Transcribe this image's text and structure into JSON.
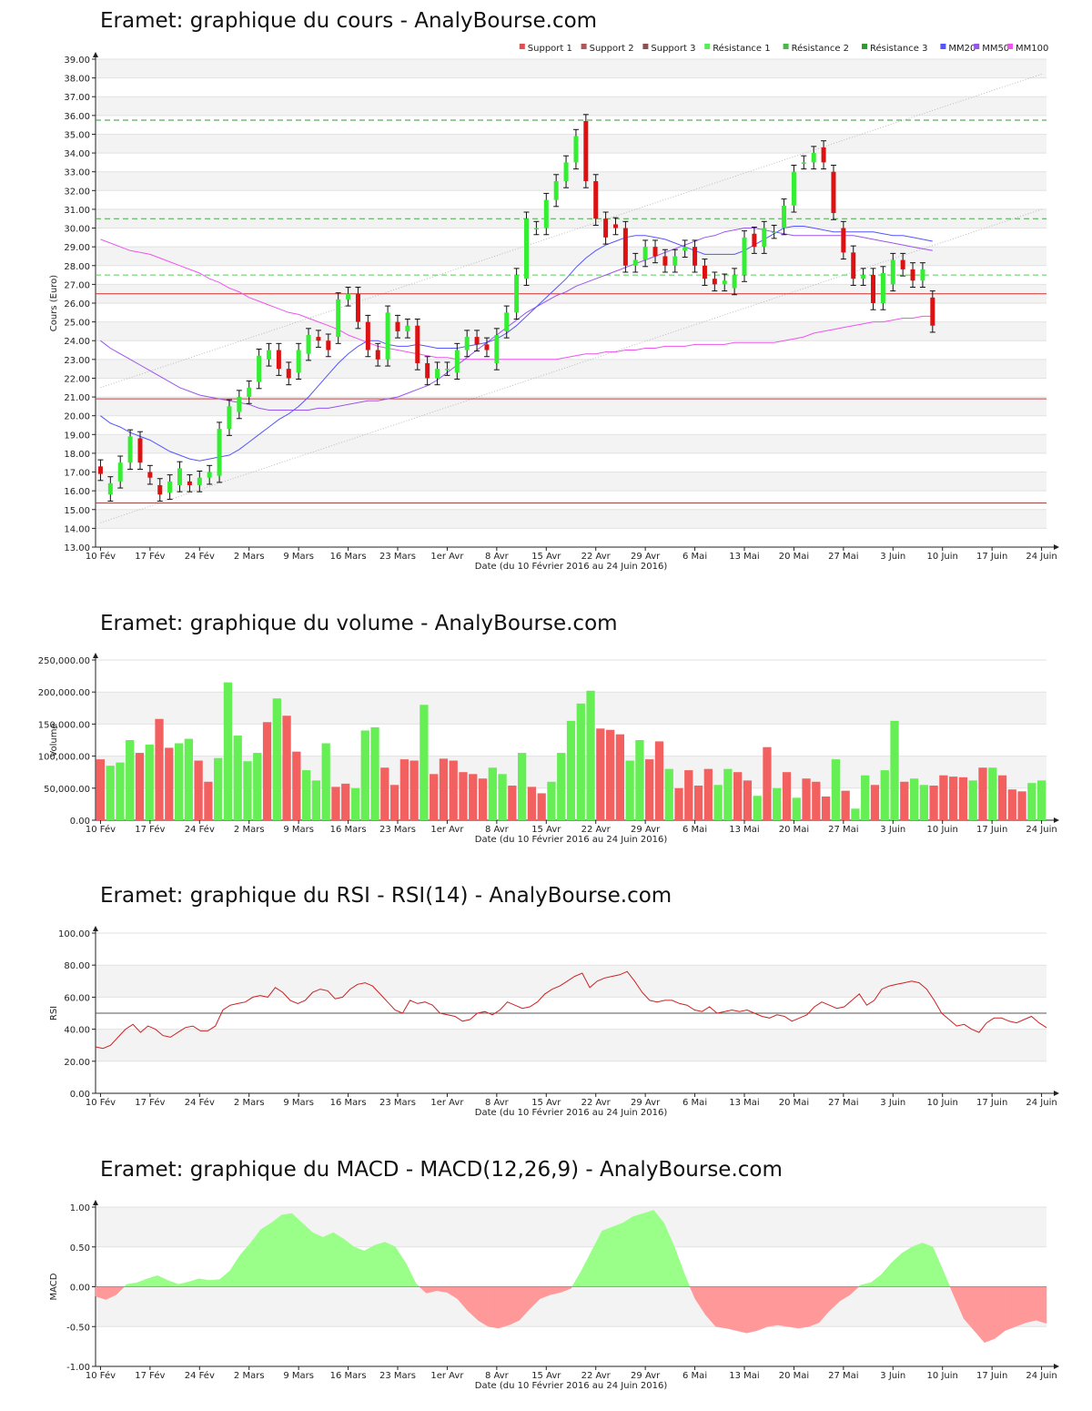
{
  "chart_data": [
    {
      "type": "candlestick",
      "title": "Eramet: graphique du cours - AnalyBourse.com",
      "xlabel": "Date (du 10 Février 2016 au 24 Juin 2016)",
      "ylabel": "Cours (Euro)",
      "ylim": [
        13,
        39
      ],
      "yticks": [
        "13.00",
        "14.00",
        "15.00",
        "16.00",
        "17.00",
        "18.00",
        "19.00",
        "20.00",
        "21.00",
        "22.00",
        "23.00",
        "24.00",
        "25.00",
        "26.00",
        "27.00",
        "28.00",
        "29.00",
        "30.00",
        "31.00",
        "32.00",
        "33.00",
        "34.00",
        "35.00",
        "36.00",
        "37.00",
        "38.00",
        "39.00"
      ],
      "x_tick_labels": [
        "10 Fév",
        "17 Fév",
        "24 Fév",
        "2 Mars",
        "9 Mars",
        "16 Mars",
        "23 Mars",
        "1er Avr",
        "8 Avr",
        "15 Avr",
        "22 Avr",
        "29 Avr",
        "6 Mai",
        "13 Mai",
        "20 Mai",
        "27 Mai",
        "3 Juin",
        "10 Juin",
        "17 Juin",
        "24 Juin"
      ],
      "x_tick_index": [
        0,
        5,
        10,
        15,
        20,
        25,
        30,
        35,
        40,
        45,
        50,
        55,
        60,
        65,
        70,
        75,
        80,
        85,
        90,
        95
      ],
      "legend": [
        "Support 1",
        "Support 2",
        "Support 3",
        "Résistance 1",
        "Résistance 2",
        "Résistance 3",
        "MM20",
        "MM50",
        "MM100"
      ],
      "legend_colors": [
        "#e05050",
        "#b05858",
        "#905050",
        "#55ee55",
        "#44bb44",
        "#339933",
        "#5555ff",
        "#9955ee",
        "#ee55ee"
      ],
      "legend_placement": "top-right",
      "levels": [
        {
          "name": "Support 1",
          "value": 26.5,
          "color": "#d03030",
          "style": "solid"
        },
        {
          "name": "Support 2",
          "value": 20.9,
          "color": "#c04040",
          "style": "solid"
        },
        {
          "name": "Support 3",
          "value": 15.35,
          "color": "#a04848",
          "style": "solid"
        },
        {
          "name": "Résistance 1",
          "value": 27.5,
          "color": "#55cc55",
          "style": "dashed"
        },
        {
          "name": "Résistance 2",
          "value": 30.5,
          "color": "#44aa44",
          "style": "dashed"
        },
        {
          "name": "Résistance 3",
          "value": 35.75,
          "color": "#339933",
          "style": "dashed"
        }
      ],
      "channel": {
        "upper": [
          [
            0,
            21.5
          ],
          [
            95,
            38.2
          ]
        ],
        "lower": [
          [
            0,
            14.3
          ],
          [
            95,
            31.0
          ]
        ]
      },
      "close": [
        16.9,
        16.4,
        17.5,
        18.9,
        17.5,
        16.7,
        15.8,
        16.5,
        17.2,
        16.3,
        16.7,
        17.0,
        19.3,
        20.5,
        21.0,
        21.5,
        23.2,
        23.5,
        22.5,
        22.0,
        23.5,
        24.3,
        24.0,
        23.5,
        26.2,
        26.5,
        25.0,
        23.5,
        23.0,
        25.5,
        24.5,
        24.8,
        22.8,
        22.0,
        22.5,
        22.5,
        23.5,
        24.2,
        23.8,
        23.5,
        24.3,
        25.5,
        27.5,
        30.5,
        30.0,
        31.5,
        32.5,
        33.5,
        34.9,
        32.5,
        30.5,
        29.5,
        30.0,
        28.0,
        28.3,
        29.0,
        28.5,
        28.0,
        28.5,
        29.0,
        28.0,
        27.3,
        27.0,
        27.2,
        27.5,
        29.5,
        29.0,
        30.0,
        29.8,
        31.2,
        33.0,
        33.5,
        34.0,
        33.5,
        30.8,
        28.7,
        27.3,
        27.5,
        26.0,
        27.6,
        28.3,
        27.8,
        27.2,
        27.8,
        24.8
      ],
      "open": [
        17.3,
        15.8,
        16.5,
        17.5,
        18.8,
        17.0,
        16.3,
        15.9,
        16.3,
        16.5,
        16.3,
        16.7,
        16.8,
        19.3,
        20.2,
        21.0,
        21.8,
        23.0,
        23.5,
        22.5,
        22.3,
        23.3,
        24.2,
        24.0,
        24.2,
        26.2,
        26.5,
        25.0,
        23.5,
        23.0,
        25.0,
        24.5,
        24.8,
        22.8,
        22.0,
        22.5,
        22.3,
        23.5,
        24.2,
        23.8,
        22.8,
        24.5,
        25.5,
        27.3,
        30.0,
        30.0,
        31.5,
        32.5,
        33.5,
        35.7,
        32.5,
        30.5,
        30.2,
        30.0,
        28.0,
        28.3,
        29.0,
        28.5,
        28.0,
        28.8,
        29.0,
        28.0,
        27.3,
        27.0,
        26.8,
        27.5,
        29.7,
        29.0,
        29.8,
        30.0,
        31.2,
        33.5,
        33.5,
        34.3,
        33.0,
        30.0,
        28.7,
        27.3,
        27.5,
        26.0,
        27.0,
        28.3,
        27.8,
        27.2,
        26.3
      ],
      "ma20": [
        20.0,
        19.6,
        19.4,
        19.1,
        18.9,
        18.7,
        18.4,
        18.1,
        17.9,
        17.7,
        17.6,
        17.7,
        17.8,
        17.9,
        18.2,
        18.6,
        19.0,
        19.4,
        19.8,
        20.1,
        20.5,
        21.0,
        21.6,
        22.2,
        22.8,
        23.3,
        23.7,
        24.0,
        24.0,
        23.8,
        23.7,
        23.7,
        23.8,
        23.7,
        23.6,
        23.6,
        23.6,
        23.7,
        23.8,
        23.9,
        24.1,
        24.4,
        24.8,
        25.3,
        25.8,
        26.3,
        26.8,
        27.3,
        27.9,
        28.4,
        28.8,
        29.1,
        29.3,
        29.5,
        29.6,
        29.6,
        29.5,
        29.4,
        29.2,
        29.0,
        28.8,
        28.6,
        28.6,
        28.6,
        28.6,
        28.8,
        29.1,
        29.4,
        29.7,
        30.0,
        30.1,
        30.1,
        30.0,
        29.9,
        29.8,
        29.8,
        29.8,
        29.8,
        29.8,
        29.7,
        29.6,
        29.6,
        29.5,
        29.4,
        29.3
      ],
      "ma50": [
        24.0,
        23.6,
        23.3,
        23.0,
        22.7,
        22.4,
        22.1,
        21.8,
        21.5,
        21.3,
        21.1,
        21.0,
        20.9,
        20.8,
        20.7,
        20.6,
        20.4,
        20.3,
        20.3,
        20.3,
        20.3,
        20.3,
        20.4,
        20.4,
        20.5,
        20.6,
        20.7,
        20.8,
        20.8,
        20.9,
        21.0,
        21.2,
        21.4,
        21.6,
        21.9,
        22.3,
        22.7,
        23.1,
        23.5,
        23.9,
        24.3,
        24.7,
        25.1,
        25.5,
        25.8,
        26.1,
        26.4,
        26.6,
        26.9,
        27.1,
        27.3,
        27.5,
        27.7,
        27.9,
        28.1,
        28.3,
        28.5,
        28.7,
        28.9,
        29.1,
        29.3,
        29.5,
        29.6,
        29.8,
        29.9,
        30.0,
        30.0,
        29.9,
        29.8,
        29.7,
        29.6,
        29.6,
        29.6,
        29.6,
        29.6,
        29.6,
        29.6,
        29.5,
        29.4,
        29.3,
        29.2,
        29.1,
        29.0,
        28.9,
        28.8
      ],
      "ma100": [
        29.4,
        29.2,
        29.0,
        28.8,
        28.7,
        28.6,
        28.4,
        28.2,
        28.0,
        27.8,
        27.6,
        27.3,
        27.1,
        26.8,
        26.6,
        26.3,
        26.1,
        25.9,
        25.7,
        25.5,
        25.4,
        25.2,
        25.0,
        24.8,
        24.6,
        24.3,
        24.1,
        23.9,
        23.7,
        23.6,
        23.5,
        23.4,
        23.3,
        23.2,
        23.1,
        23.1,
        23.0,
        23.0,
        23.0,
        23.0,
        23.0,
        23.0,
        23.0,
        23.0,
        23.0,
        23.0,
        23.0,
        23.1,
        23.2,
        23.3,
        23.3,
        23.4,
        23.4,
        23.5,
        23.5,
        23.6,
        23.6,
        23.7,
        23.7,
        23.7,
        23.8,
        23.8,
        23.8,
        23.8,
        23.9,
        23.9,
        23.9,
        23.9,
        23.9,
        24.0,
        24.1,
        24.2,
        24.4,
        24.5,
        24.6,
        24.7,
        24.8,
        24.9,
        25.0,
        25.0,
        25.1,
        25.2,
        25.2,
        25.3,
        25.3
      ]
    },
    {
      "type": "bar",
      "title": "Eramet: graphique du volume - AnalyBourse.com",
      "xlabel": "Date (du 10 Février 2016 au 24 Juin 2016)",
      "ylabel": "Volume",
      "ylim": [
        0,
        250000
      ],
      "yticks": [
        "0.00",
        "50,000.00",
        "100,000.00",
        "150,000.00",
        "200,000.00",
        "250,000.00"
      ],
      "x_tick_labels": [
        "10 Fév",
        "17 Fév",
        "24 Fév",
        "2 Mars",
        "9 Mars",
        "16 Mars",
        "23 Mars",
        "1er Avr",
        "8 Avr",
        "15 Avr",
        "22 Avr",
        "29 Avr",
        "6 Mai",
        "13 Mai",
        "20 Mai",
        "27 Mai",
        "3 Juin",
        "10 Juin",
        "17 Juin",
        "24 Juin"
      ],
      "x_tick_index": [
        0,
        5,
        10,
        15,
        20,
        25,
        30,
        35,
        40,
        45,
        50,
        55,
        60,
        65,
        70,
        75,
        80,
        85,
        90,
        95
      ],
      "values": [
        95000,
        85000,
        90000,
        125000,
        105000,
        118000,
        158000,
        113000,
        120000,
        127000,
        93000,
        60000,
        97000,
        215000,
        132000,
        92000,
        105000,
        153000,
        190000,
        163000,
        107000,
        78000,
        62000,
        120000,
        52000,
        57000,
        50000,
        140000,
        145000,
        82000,
        55000,
        95000,
        93000,
        180000,
        72000,
        96000,
        93000,
        75000,
        72000,
        65000,
        82000,
        72000,
        54000,
        105000,
        52000,
        42000,
        60000,
        105000,
        155000,
        182000,
        202000,
        143000,
        141000,
        134000,
        93000,
        125000,
        95000,
        123000,
        80000,
        50000,
        78000,
        54000,
        80000,
        55000,
        80000,
        75000,
        62000,
        38000,
        114000,
        50000,
        75000,
        35000,
        65000,
        60000,
        37000,
        95000,
        46000,
        18000,
        70000,
        55000,
        78000,
        155000,
        60000,
        65000,
        55000,
        54000,
        70000,
        68000,
        67000,
        62000,
        82000,
        82000,
        70000,
        48000,
        45000,
        58000,
        62000
      ],
      "colors_up_down": [
        "red",
        "green",
        "green",
        "green",
        "red",
        "green",
        "red",
        "red",
        "green",
        "green",
        "red",
        "red",
        "green",
        "green",
        "green",
        "green",
        "green",
        "red",
        "green",
        "red",
        "red",
        "green",
        "green",
        "green",
        "red",
        "red",
        "green",
        "green",
        "green",
        "red",
        "red",
        "red",
        "red",
        "green",
        "red",
        "red",
        "red",
        "red",
        "red",
        "red",
        "green",
        "green",
        "red",
        "green",
        "red",
        "red",
        "green",
        "green",
        "green",
        "green",
        "green",
        "red",
        "red",
        "red",
        "green",
        "green",
        "red",
        "red",
        "green",
        "red",
        "red",
        "red",
        "red",
        "green",
        "green",
        "red",
        "red",
        "green",
        "red",
        "green",
        "red",
        "green",
        "red",
        "red",
        "red",
        "green",
        "red",
        "green",
        "green",
        "red",
        "green",
        "green",
        "red",
        "green",
        "green",
        "red",
        "red",
        "red",
        "red",
        "green",
        "red",
        "green",
        "red",
        "red",
        "red",
        "green",
        "green"
      ]
    },
    {
      "type": "line",
      "title": "Eramet: graphique du RSI - RSI(14) - AnalyBourse.com",
      "xlabel": "Date (du 10 Février 2016 au 24 Juin 2016)",
      "ylabel": "RSI",
      "ylim": [
        0,
        100
      ],
      "yticks": [
        "0.00",
        "20.00",
        "40.00",
        "60.00",
        "80.00",
        "100.00"
      ],
      "x_tick_labels": [
        "10 Fév",
        "17 Fév",
        "24 Fév",
        "2 Mars",
        "9 Mars",
        "16 Mars",
        "23 Mars",
        "1er Avr",
        "8 Avr",
        "15 Avr",
        "22 Avr",
        "29 Avr",
        "6 Mai",
        "13 Mai",
        "20 Mai",
        "27 Mai",
        "3 Juin",
        "10 Juin",
        "17 Juin",
        "24 Juin"
      ],
      "x_tick_index": [
        0,
        5,
        10,
        15,
        20,
        25,
        30,
        35,
        40,
        45,
        50,
        55,
        60,
        65,
        70,
        75,
        80,
        85,
        90,
        95
      ],
      "reference_line": 50,
      "values": [
        29,
        28,
        30,
        35,
        40,
        43,
        38,
        42,
        40,
        36,
        35,
        38,
        41,
        42,
        39,
        39,
        42,
        52,
        55,
        56,
        57,
        60,
        61,
        60,
        66,
        63,
        58,
        56,
        58,
        63,
        65,
        64,
        59,
        60,
        65,
        68,
        69,
        67,
        62,
        57,
        52,
        50,
        58,
        56,
        57,
        55,
        50,
        49,
        48,
        45,
        46,
        50,
        51,
        49,
        52,
        57,
        55,
        53,
        54,
        57,
        62,
        65,
        67,
        70,
        73,
        75,
        66,
        70,
        72,
        73,
        74,
        76,
        70,
        63,
        58,
        57,
        58,
        58,
        56,
        55,
        52,
        51,
        54,
        50,
        51,
        52,
        51,
        52,
        50,
        48,
        47,
        49,
        48,
        45,
        47,
        49,
        54,
        57,
        55,
        53,
        54,
        58,
        62,
        55,
        58,
        65,
        67,
        68,
        69,
        70,
        69,
        65,
        58,
        50,
        46,
        42,
        43,
        40,
        38,
        44,
        47,
        47,
        45,
        44,
        46,
        48,
        44,
        41
      ],
      "color": "#cc2222"
    },
    {
      "type": "area",
      "title": "Eramet: graphique du MACD - MACD(12,26,9) - AnalyBourse.com",
      "xlabel": "Date (du 10 Février 2016 au 24 Juin 2016)",
      "ylabel": "MACD",
      "ylim": [
        -1,
        1
      ],
      "yticks": [
        "-1.00",
        "-0.50",
        "0.00",
        "0.50",
        "1.00"
      ],
      "x_tick_labels": [
        "10 Fév",
        "17 Fév",
        "24 Fév",
        "2 Mars",
        "9 Mars",
        "16 Mars",
        "23 Mars",
        "1er Avr",
        "8 Avr",
        "15 Avr",
        "22 Avr",
        "29 Avr",
        "6 Mai",
        "13 Mai",
        "20 Mai",
        "27 Mai",
        "3 Juin",
        "10 Juin",
        "17 Juin",
        "24 Juin"
      ],
      "x_tick_index": [
        0,
        5,
        10,
        15,
        20,
        25,
        30,
        35,
        40,
        45,
        50,
        55,
        60,
        65,
        70,
        75,
        80,
        85,
        90,
        95
      ],
      "values": [
        -0.12,
        -0.16,
        -0.1,
        0.03,
        0.05,
        0.1,
        0.14,
        0.08,
        0.03,
        0.06,
        0.1,
        0.08,
        0.09,
        0.2,
        0.4,
        0.55,
        0.72,
        0.8,
        0.9,
        0.92,
        0.8,
        0.68,
        0.62,
        0.68,
        0.6,
        0.5,
        0.45,
        0.52,
        0.56,
        0.5,
        0.3,
        0.04,
        -0.08,
        -0.05,
        -0.07,
        -0.15,
        -0.3,
        -0.42,
        -0.5,
        -0.52,
        -0.48,
        -0.42,
        -0.28,
        -0.15,
        -0.1,
        -0.07,
        -0.02,
        0.2,
        0.45,
        0.7,
        0.75,
        0.8,
        0.88,
        0.92,
        0.96,
        0.8,
        0.5,
        0.15,
        -0.15,
        -0.35,
        -0.5,
        -0.52,
        -0.55,
        -0.58,
        -0.55,
        -0.5,
        -0.48,
        -0.5,
        -0.52,
        -0.5,
        -0.45,
        -0.3,
        -0.18,
        -0.1,
        0.02,
        0.05,
        0.15,
        0.3,
        0.42,
        0.5,
        0.55,
        0.5,
        0.2,
        -0.1,
        -0.4,
        -0.55,
        -0.7,
        -0.65,
        -0.55,
        -0.5,
        -0.45,
        -0.42,
        -0.46
      ]
    }
  ]
}
